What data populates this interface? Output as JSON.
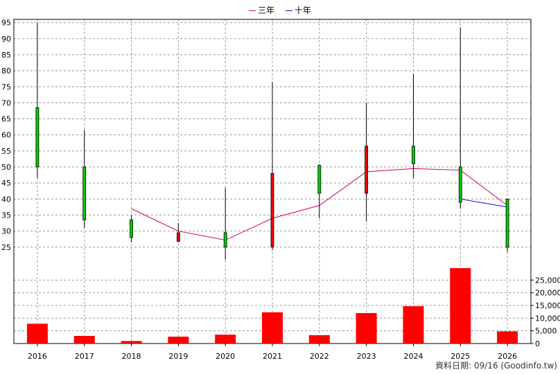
{
  "legend": [
    {
      "name": "三年",
      "color": "#cc0066"
    },
    {
      "name": "十年",
      "color": "#3300cc"
    }
  ],
  "source_note": "資料日期: 09/16 (Goodinfo.tw)",
  "chart_data": [
    {
      "type": "candlestick",
      "categories": [
        "2016",
        "2017",
        "2018",
        "2019",
        "2020",
        "2021",
        "2022",
        "2023",
        "2024",
        "2025",
        "2026"
      ],
      "ylim": [
        20,
        96
      ],
      "yticks": [
        25,
        30,
        35,
        40,
        45,
        50,
        55,
        60,
        65,
        70,
        75,
        80,
        85,
        90,
        95
      ],
      "grid": true,
      "up_color": "#ff0000",
      "down_color": "#00cc00",
      "candles": [
        {
          "x": "2016",
          "open": 68.5,
          "close": 50.0,
          "high": 95.0,
          "low": 46.5
        },
        {
          "x": "2017",
          "open": 50.0,
          "close": 33.5,
          "high": 61.5,
          "low": 31.0
        },
        {
          "x": "2018",
          "open": 33.5,
          "close": 28.0,
          "high": 35.0,
          "low": 26.5
        },
        {
          "x": "2019",
          "open": 26.8,
          "close": 29.5,
          "high": 32.5,
          "low": 26.5
        },
        {
          "x": "2020",
          "open": 29.5,
          "close": 25.0,
          "high": 43.5,
          "low": 21.0
        },
        {
          "x": "2021",
          "open": 25.0,
          "close": 48.0,
          "high": 76.5,
          "low": 24.0
        },
        {
          "x": "2022",
          "open": 50.5,
          "close": 41.8,
          "high": 50.8,
          "low": 34.0
        },
        {
          "x": "2023",
          "open": 41.8,
          "close": 56.5,
          "high": 70.0,
          "low": 33.0
        },
        {
          "x": "2024",
          "open": 56.5,
          "close": 51.0,
          "high": 79.0,
          "low": 46.5
        },
        {
          "x": "2025",
          "open": 50.0,
          "close": 39.0,
          "high": 93.5,
          "low": 37.0
        },
        {
          "x": "2026",
          "open": 40.0,
          "close": 25.0,
          "high": 40.0,
          "low": 23.5
        }
      ],
      "series": [
        {
          "name": "三年",
          "color": "#cc0066",
          "x": [
            "2018",
            "2019",
            "2020",
            "2021",
            "2022",
            "2023",
            "2024",
            "2025",
            "2026"
          ],
          "values": [
            37.0,
            30.0,
            27.2,
            34.0,
            38.0,
            48.5,
            49.5,
            49.0,
            38.0
          ]
        },
        {
          "name": "十年",
          "color": "#3300cc",
          "x": [
            "2025",
            "2026"
          ],
          "values": [
            40.0,
            37.5
          ]
        }
      ]
    },
    {
      "type": "bar",
      "categories": [
        "2016",
        "2017",
        "2018",
        "2019",
        "2020",
        "2021",
        "2022",
        "2023",
        "2024",
        "2025",
        "2026"
      ],
      "values": [
        7800,
        3000,
        1000,
        2700,
        3500,
        12300,
        3300,
        12000,
        14700,
        29700,
        4800
      ],
      "ylim": [
        0,
        30000
      ],
      "yticks": [
        0,
        5000,
        10000,
        15000,
        20000,
        25000
      ],
      "ytick_labels": [
        "0",
        "5,000",
        "10,000",
        "15,000",
        "20,000",
        "25,000"
      ],
      "color": "#ff0000",
      "grid": true
    }
  ]
}
